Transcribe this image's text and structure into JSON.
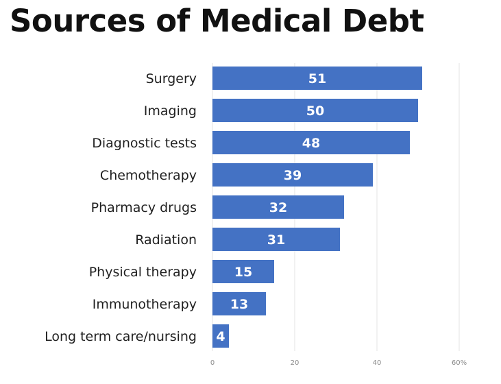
{
  "chart_data": {
    "type": "bar",
    "orientation": "horizontal",
    "title": "Sources of Medical Debt",
    "categories": [
      "Surgery",
      "Imaging",
      "Diagnostic tests",
      "Chemotherapy",
      "Pharmacy drugs",
      "Radiation",
      "Physical therapy",
      "Immunotherapy",
      "Long term care/nursing"
    ],
    "values": [
      51,
      50,
      48,
      39,
      32,
      31,
      15,
      13,
      4
    ],
    "data_labels": [
      "51",
      "50",
      "48",
      "39",
      "32",
      "31",
      "15",
      "13",
      "4"
    ],
    "x_ticks": [
      {
        "value": 0,
        "label": "0"
      },
      {
        "value": 20,
        "label": "20"
      },
      {
        "value": 40,
        "label": "40"
      },
      {
        "value": 60,
        "label": "60%"
      }
    ],
    "xlim": [
      0,
      60
    ],
    "grid": "vertical",
    "legend": "none",
    "bar_color": "#4472C4",
    "data_label_color": "#FFFFFF"
  }
}
